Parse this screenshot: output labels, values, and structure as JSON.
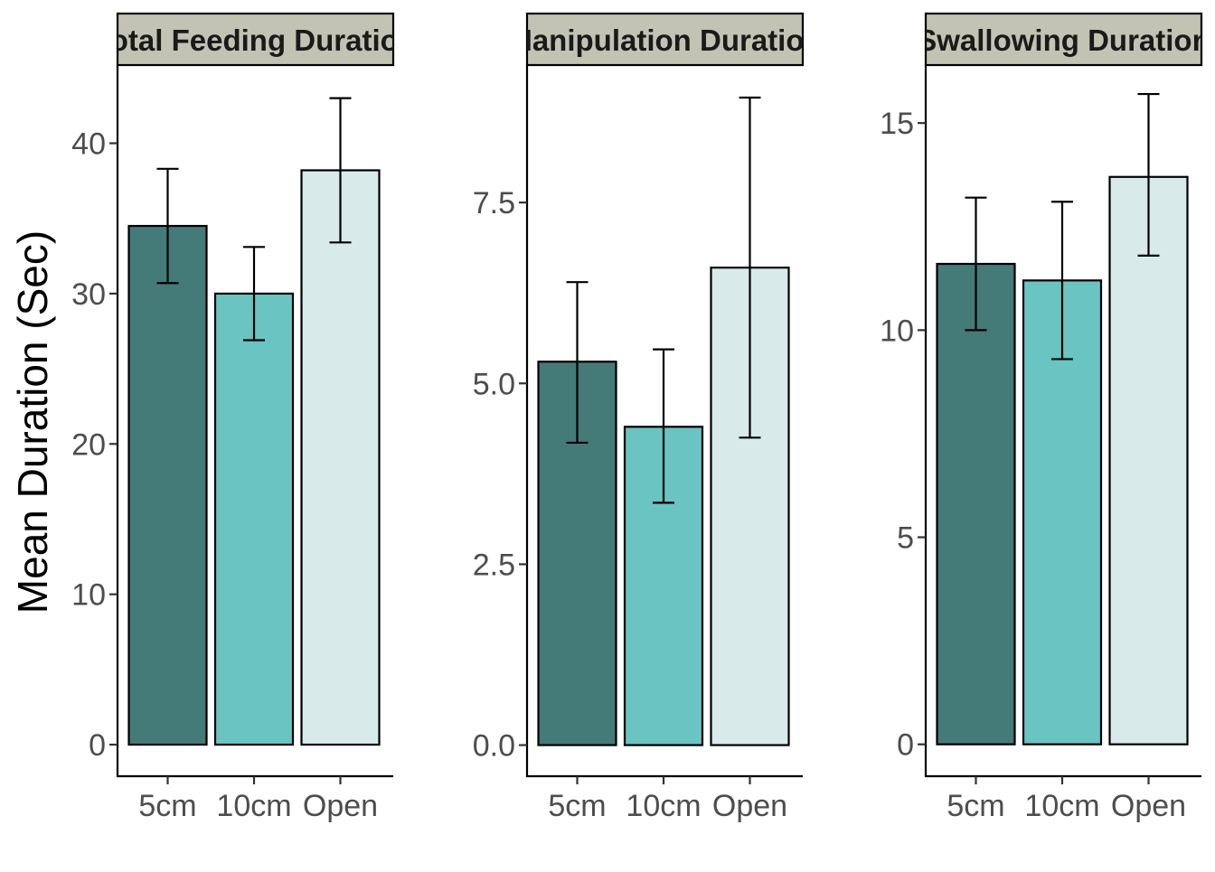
{
  "chart_data": {
    "type": "bar",
    "ylabel": "Mean Duration (Sec)",
    "categories": [
      "5cm",
      "10cm",
      "Open"
    ],
    "fill_colors": [
      "#447a78",
      "#69c4c2",
      "#d8eaea"
    ],
    "strip_fill": "#c2c3b3",
    "panels": [
      {
        "strip_label": "Total Feeding Duration",
        "values": [
          34.5,
          30.0,
          38.2
        ],
        "error_low": [
          30.7,
          26.9,
          33.4
        ],
        "error_high": [
          38.3,
          33.1,
          43.0
        ],
        "ylim": [
          -2.1,
          45.2
        ],
        "yticks": [
          0,
          10,
          20,
          30,
          40
        ],
        "ytick_labels": [
          "0",
          "10",
          "20",
          "30",
          "40"
        ]
      },
      {
        "strip_label": "Manipulation Duration",
        "values": [
          5.3,
          4.4,
          6.6
        ],
        "error_low": [
          4.18,
          3.35,
          4.25
        ],
        "error_high": [
          6.4,
          5.47,
          8.95
        ],
        "ylim": [
          -0.43,
          9.4
        ],
        "yticks": [
          0,
          2.5,
          5,
          7.5
        ],
        "ytick_labels": [
          "0.0",
          "2.5",
          "5.0",
          "7.5"
        ]
      },
      {
        "strip_label": "Swallowing Duration",
        "values": [
          11.6,
          11.2,
          13.7
        ],
        "error_low": [
          10.0,
          9.3,
          11.8
        ],
        "error_high": [
          13.2,
          13.1,
          15.7
        ],
        "ylim": [
          -0.77,
          16.4
        ],
        "yticks": [
          0,
          5,
          10,
          15
        ],
        "ytick_labels": [
          "0",
          "5",
          "10",
          "15"
        ]
      }
    ]
  }
}
